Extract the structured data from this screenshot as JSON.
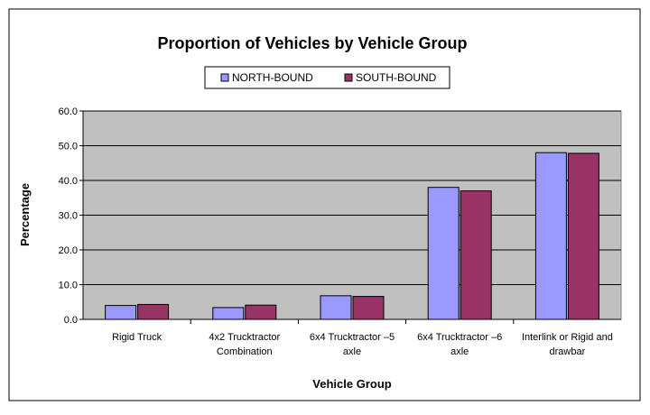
{
  "chart_data": {
    "type": "bar",
    "title": "Proportion of Vehicles by Vehicle Group",
    "xlabel": "Vehicle Group",
    "ylabel": "Percentage",
    "ylim": [
      0,
      60
    ],
    "yticks": [
      "0.0",
      "10.0",
      "20.0",
      "30.0",
      "40.0",
      "50.0",
      "60.0"
    ],
    "grid": true,
    "legend_position": "top-center",
    "categories": [
      [
        "Rigid Truck"
      ],
      [
        "4x2 Trucktractor",
        "Combination"
      ],
      [
        "6x4 Trucktractor –5",
        "axle"
      ],
      [
        "6x4 Trucktractor –6",
        "axle"
      ],
      [
        "Interlink or Rigid and",
        "drawbar"
      ]
    ],
    "series": [
      {
        "name": "NORTH-BOUND",
        "color": "#9999ff",
        "values": [
          4.0,
          3.4,
          6.8,
          38.0,
          48.0
        ]
      },
      {
        "name": "SOUTH-BOUND",
        "color": "#993366",
        "values": [
          4.3,
          4.1,
          6.6,
          37.0,
          47.8
        ]
      }
    ],
    "plot_background": "#c0c0c0"
  }
}
